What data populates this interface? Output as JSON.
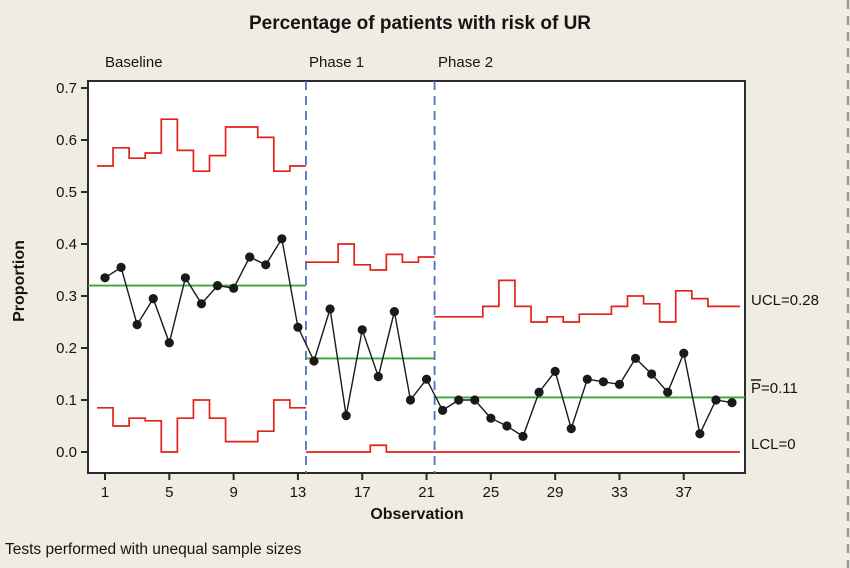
{
  "title": "Percentage of patients with risk of UR",
  "footnote": "Tests performed with unequal sample sizes",
  "axes": {
    "xlabel": "Observation",
    "ylabel": "Proportion",
    "yticks": [
      "0.0",
      "0.1",
      "0.2",
      "0.3",
      "0.4",
      "0.5",
      "0.6",
      "0.7"
    ],
    "xticks": [
      1,
      5,
      9,
      13,
      17,
      21,
      25,
      29,
      33,
      37
    ],
    "ylim": [
      0.0,
      0.7
    ],
    "xlim": [
      1,
      40
    ]
  },
  "annotations": {
    "ucl_label": "UCL=0.28",
    "center_label": "P=0.11",
    "center_label_has_overbar": true,
    "lcl_label": "LCL=0"
  },
  "colors": {
    "background": "#f0ece1",
    "plot_background": "#ffffff",
    "limit_line": "#e2231a",
    "center_line": "#3aa53a",
    "series": "#1a1a1a",
    "phase_divider": "#5470b8",
    "frame": "#2b2b2b",
    "marquee": "#9a9a9a"
  },
  "chart_data": {
    "type": "line",
    "subtype": "p-control-chart",
    "title": "Percentage of patients with risk of UR",
    "xlabel": "Observation",
    "ylabel": "Proportion",
    "ylim": [
      0.0,
      0.7
    ],
    "yticks": [
      0.0,
      0.1,
      0.2,
      0.3,
      0.4,
      0.5,
      0.6,
      0.7
    ],
    "xticks": [
      1,
      5,
      9,
      13,
      17,
      21,
      25,
      29,
      33,
      37
    ],
    "n_observations": 40,
    "phase_boundaries": [
      13.5,
      21.5
    ],
    "legend": "none",
    "grid": false,
    "phases": [
      {
        "name": "Baseline",
        "start_obs": 1,
        "end_obs": 13,
        "center": 0.32,
        "proportions": [
          0.335,
          0.355,
          0.245,
          0.295,
          0.21,
          0.335,
          0.285,
          0.32,
          0.315,
          0.375,
          0.36,
          0.41,
          0.24
        ],
        "ucl": [
          0.55,
          0.585,
          0.565,
          0.575,
          0.64,
          0.58,
          0.54,
          0.57,
          0.625,
          0.625,
          0.605,
          0.54,
          0.55
        ],
        "lcl": [
          0.085,
          0.05,
          0.065,
          0.06,
          0.0,
          0.065,
          0.1,
          0.065,
          0.02,
          0.02,
          0.04,
          0.1,
          0.085
        ]
      },
      {
        "name": "Phase 1",
        "start_obs": 14,
        "end_obs": 21,
        "center": 0.18,
        "proportions": [
          0.175,
          0.275,
          0.07,
          0.235,
          0.145,
          0.27,
          0.1,
          0.14
        ],
        "ucl": [
          0.365,
          0.365,
          0.4,
          0.36,
          0.35,
          0.38,
          0.365,
          0.375
        ],
        "lcl": [
          0,
          0,
          0,
          0,
          0.013,
          0,
          0,
          0
        ]
      },
      {
        "name": "Phase 2",
        "start_obs": 22,
        "end_obs": 40,
        "center": 0.105,
        "proportions": [
          0.08,
          0.1,
          0.1,
          0.065,
          0.05,
          0.03,
          0.115,
          0.155,
          0.045,
          0.14,
          0.135,
          0.13,
          0.18,
          0.15,
          0.115,
          0.19,
          0.035,
          0.1,
          0.095
        ],
        "ucl": [
          0.26,
          0.26,
          0.26,
          0.28,
          0.33,
          0.28,
          0.25,
          0.26,
          0.25,
          0.265,
          0.265,
          0.28,
          0.3,
          0.285,
          0.25,
          0.31,
          0.295,
          0.28,
          0.28
        ],
        "lcl": [
          0,
          0,
          0,
          0,
          0,
          0,
          0,
          0,
          0,
          0,
          0,
          0,
          0,
          0,
          0,
          0,
          0,
          0,
          0
        ]
      }
    ],
    "final_limits": {
      "ucl": 0.28,
      "center": 0.11,
      "lcl": 0
    }
  }
}
